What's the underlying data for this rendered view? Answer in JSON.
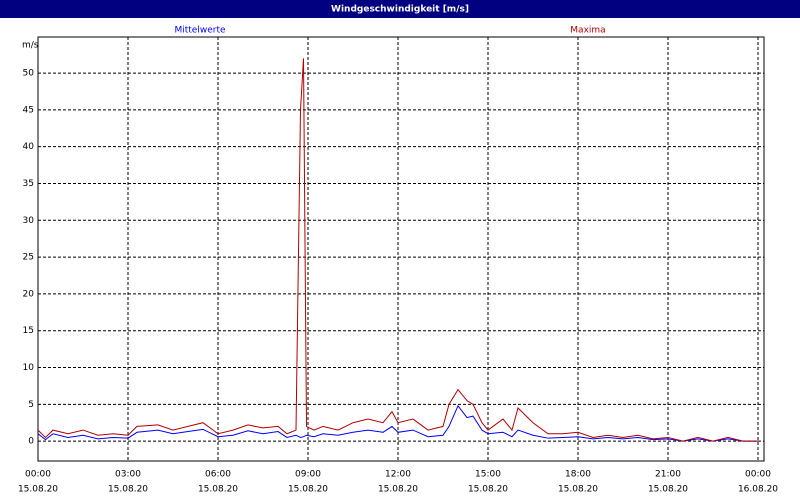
{
  "chart_data": {
    "type": "line",
    "title": "Windgeschwindigkeit [m/s]",
    "y_unit": "m/s",
    "x": [
      0,
      0.25,
      0.5,
      1,
      1.5,
      2,
      2.5,
      3,
      3.3,
      4,
      4.5,
      5,
      5.5,
      6,
      6.5,
      7,
      7.5,
      8,
      8.3,
      8.6,
      8.75,
      8.85,
      8.95,
      9.2,
      9.5,
      10,
      10.5,
      11,
      11.5,
      11.8,
      12,
      12.5,
      13,
      13.5,
      13.7,
      14,
      14.3,
      14.5,
      14.8,
      15,
      15.5,
      15.8,
      16,
      16.5,
      17,
      17.5,
      18,
      18.5,
      19,
      19.5,
      20,
      20.5,
      21,
      21.5,
      22,
      22.5,
      23,
      23.5,
      24
    ],
    "series": [
      {
        "name": "Mittelwerte",
        "color": "#0000ff",
        "values": [
          1,
          0.2,
          1,
          0.5,
          0.8,
          0.3,
          0.5,
          0.4,
          1.2,
          1.5,
          1,
          1.3,
          1.6,
          0.6,
          0.8,
          1.4,
          1,
          1.3,
          0.5,
          0.8,
          0.5,
          0.6,
          0.8,
          0.6,
          1,
          0.8,
          1.2,
          1.5,
          1.2,
          2,
          1.2,
          1.5,
          0.6,
          0.8,
          2,
          4.8,
          3.2,
          3.4,
          1.5,
          1,
          1.2,
          0.6,
          1.5,
          0.8,
          0.4,
          0.5,
          0.6,
          0.3,
          0.5,
          0.3,
          0.5,
          0.2,
          0.3,
          0,
          0.3,
          0,
          0.3,
          0,
          0
        ]
      },
      {
        "name": "Maxima",
        "color": "#b00000",
        "values": [
          1.5,
          0.5,
          1.5,
          1,
          1.5,
          0.8,
          1,
          0.8,
          2,
          2.2,
          1.5,
          2,
          2.5,
          1,
          1.5,
          2.2,
          1.8,
          2,
          1,
          1.5,
          45,
          52,
          2,
          1.5,
          2,
          1.5,
          2.5,
          3,
          2.5,
          4,
          2.5,
          3,
          1.5,
          2,
          5,
          7,
          5.5,
          5,
          2.5,
          1.5,
          3,
          1.5,
          4.5,
          2.5,
          1,
          1,
          1.2,
          0.5,
          0.8,
          0.5,
          0.8,
          0.3,
          0.5,
          0,
          0.5,
          0,
          0.5,
          0,
          0
        ]
      }
    ],
    "xlim": [
      0,
      24
    ],
    "xticks": [
      {
        "value": 0,
        "label": "00:00"
      },
      {
        "value": 3,
        "label": "03:00"
      },
      {
        "value": 6,
        "label": "06:00"
      },
      {
        "value": 9,
        "label": "09:00"
      },
      {
        "value": 12,
        "label": "12:00"
      },
      {
        "value": 15,
        "label": "15:00"
      },
      {
        "value": 18,
        "label": "18:00"
      },
      {
        "value": 21,
        "label": "21:00"
      },
      {
        "value": 24,
        "label": "00:00"
      }
    ],
    "xtick_dates": [
      "15.08.20",
      "15.08.20",
      "15.08.20",
      "15.08.20",
      "15.08.20",
      "15.08.20",
      "15.08.20",
      "15.08.20",
      "16.08.20"
    ],
    "ylim": [
      -2.7,
      54.9
    ],
    "yticks": [
      0,
      5,
      10,
      15,
      20,
      25,
      30,
      35,
      40,
      45,
      50
    ],
    "grid": true
  }
}
